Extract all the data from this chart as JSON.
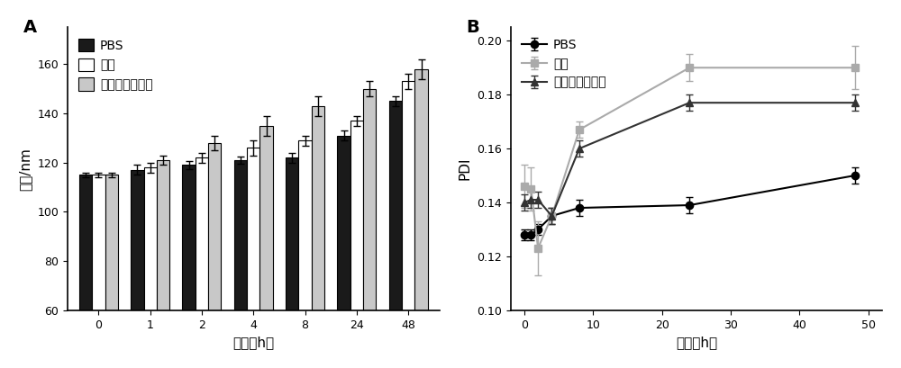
{
  "panel_A": {
    "title": "A",
    "time_points": [
      0,
      1,
      2,
      4,
      8,
      24,
      48
    ],
    "PBS": [
      115,
      117,
      119,
      121,
      122,
      131,
      145
    ],
    "PBS_err": [
      1,
      2,
      1.5,
      1.5,
      2,
      2,
      2
    ],
    "xueqing": [
      115,
      118,
      122,
      126,
      129,
      137,
      153
    ],
    "xueqing_err": [
      1,
      2,
      2,
      3,
      2,
      2,
      3
    ],
    "xibao": [
      115,
      121,
      128,
      135,
      143,
      150,
      158
    ],
    "xibao_err": [
      1,
      2,
      3,
      4,
      4,
      3,
      4
    ],
    "ylabel": "粒径/nm",
    "xlabel": "时间（h）",
    "ylim": [
      60,
      175
    ],
    "yticks": [
      60,
      80,
      100,
      120,
      140,
      160
    ],
    "bar_colors": [
      "#1a1a1a",
      "#ffffff",
      "#c8c8c8"
    ],
    "bar_edge": "#000000",
    "legend_labels": [
      "PBS",
      "血清",
      "细胞完全培养基"
    ]
  },
  "panel_B": {
    "title": "B",
    "time_points": [
      0,
      1,
      2,
      4,
      8,
      24,
      48
    ],
    "PBS": [
      0.128,
      0.128,
      0.13,
      0.135,
      0.138,
      0.139,
      0.15
    ],
    "PBS_err": [
      0.002,
      0.002,
      0.002,
      0.003,
      0.003,
      0.003,
      0.003
    ],
    "xueqing": [
      0.146,
      0.145,
      0.123,
      0.135,
      0.167,
      0.19,
      0.19
    ],
    "xueqing_err": [
      0.008,
      0.008,
      0.01,
      0.003,
      0.003,
      0.005,
      0.008
    ],
    "xibao": [
      0.14,
      0.141,
      0.141,
      0.135,
      0.16,
      0.177,
      0.177
    ],
    "xibao_err": [
      0.003,
      0.003,
      0.003,
      0.003,
      0.003,
      0.003,
      0.003
    ],
    "ylabel": "PDI",
    "xlabel": "时间（h）",
    "ylim": [
      0.1,
      0.205
    ],
    "yticks": [
      0.1,
      0.12,
      0.14,
      0.16,
      0.18,
      0.2
    ],
    "line_colors": [
      "#000000",
      "#aaaaaa",
      "#333333"
    ],
    "markers": [
      "o",
      "s",
      "^"
    ],
    "legend_labels": [
      "PBS",
      "血清",
      "细胞完全培养基"
    ]
  },
  "fig_width": 10.0,
  "fig_height": 4.09,
  "dpi": 100,
  "font_size": 10,
  "label_fontsize": 11,
  "title_fontsize": 14,
  "tick_fontsize": 9
}
